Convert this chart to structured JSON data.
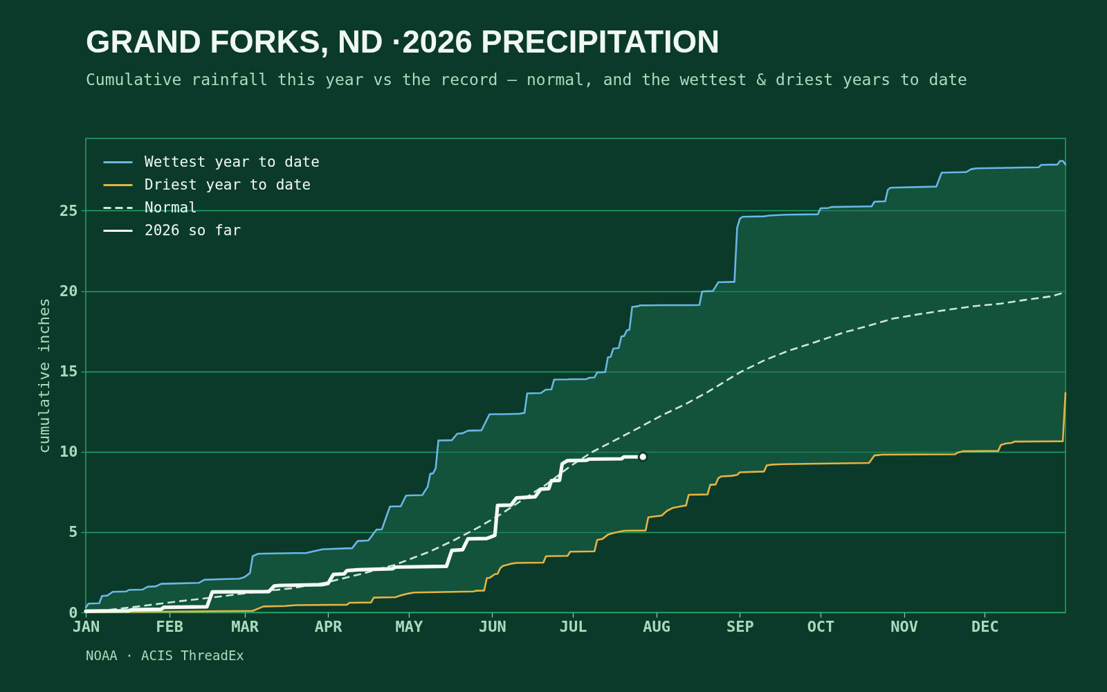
{
  "chart_data": {
    "type": "line",
    "title": "GRAND FORKS, ND ·2026 PRECIPITATION",
    "subtitle": "Cumulative rainfall this year vs the record — normal, and the wettest & driest years to date",
    "ylabel": "cumulative inches",
    "annotations": [
      "NOAA · ACIS ThreadEx"
    ],
    "xlim": [
      "--01-01",
      "--12-31"
    ],
    "xticks": [
      {
        "value": "--01-01",
        "label": "JAN"
      },
      {
        "value": "--02-01",
        "label": "FEB"
      },
      {
        "value": "--03-01",
        "label": "MAR"
      },
      {
        "value": "--04-01",
        "label": "APR"
      },
      {
        "value": "--05-01",
        "label": "MAY"
      },
      {
        "value": "--06-01",
        "label": "JUN"
      },
      {
        "value": "--07-01",
        "label": "JUL"
      },
      {
        "value": "--08-01",
        "label": "AUG"
      },
      {
        "value": "--09-01",
        "label": "SEP"
      },
      {
        "value": "--10-01",
        "label": "OCT"
      },
      {
        "value": "--11-01",
        "label": "NOV"
      },
      {
        "value": "--12-01",
        "label": "DEC"
      }
    ],
    "ylim": [
      0,
      29.5
    ],
    "yticks": [
      0,
      5,
      10,
      15,
      20,
      25
    ],
    "grid": "y",
    "legend": "top left",
    "series": [
      {
        "name": "Wettest year to date",
        "color": "#6bb6e6",
        "x": [
          "--01-01",
          "--01-02",
          "--01-06",
          "--01-07",
          "--01-09",
          "--01-11",
          "--01-16",
          "--01-17",
          "--01-22",
          "--01-24",
          "--01-27",
          "--01-29",
          "--02-10",
          "--02-12",
          "--02-14",
          "--02-20",
          "--02-27",
          "--03-01",
          "--03-03",
          "--03-04",
          "--03-06",
          "--03-08",
          "--03-16",
          "--03-20",
          "--03-24",
          "--03-30",
          "--04-08",
          "--04-09",
          "--04-10",
          "--04-12",
          "--04-16",
          "--04-17",
          "--04-18",
          "--04-19",
          "--04-21",
          "--04-24",
          "--04-26",
          "--04-28",
          "--04-30",
          "--05-01",
          "--05-03",
          "--05-06",
          "--05-08",
          "--05-09",
          "--05-10",
          "--05-11",
          "--05-12",
          "--05-17",
          "--05-19",
          "--05-21",
          "--05-23",
          "--05-25",
          "--05-26",
          "--05-28",
          "--05-29",
          "--05-30",
          "--05-31",
          "--06-02",
          "--06-03",
          "--06-04",
          "--06-05",
          "--06-08",
          "--06-10",
          "--06-11",
          "--06-13",
          "--06-14",
          "--06-19",
          "--06-20",
          "--06-21",
          "--06-23",
          "--06-24",
          "--06-29",
          "--06-30",
          "--07-06",
          "--07-07",
          "--07-09",
          "--07-10",
          "--07-12",
          "--07-13",
          "--07-14",
          "--07-15",
          "--07-16",
          "--07-18",
          "--07-19",
          "--07-20",
          "--07-21",
          "--07-22",
          "--07-23",
          "--07-25",
          "--07-26",
          "--07-28",
          "--07-29",
          "--08-03",
          "--08-05",
          "--08-07",
          "--08-11",
          "--08-12",
          "--08-13",
          "--08-17",
          "--08-18",
          "--08-20",
          "--08-21",
          "--08-22",
          "--08-23",
          "--08-24",
          "--08-25",
          "--08-29",
          "--08-30",
          "--08-31",
          "--09-01",
          "--09-02",
          "--09-10",
          "--09-11",
          "--09-12",
          "--09-13",
          "--09-17",
          "--09-18",
          "--09-30",
          "--10-01",
          "--10-04",
          "--10-05",
          "--10-19",
          "--10-20",
          "--10-21",
          "--10-24",
          "--10-25",
          "--10-26",
          "--10-27",
          "--11-13",
          "--11-15",
          "--11-20",
          "--11-21",
          "--11-23",
          "--11-24",
          "--11-26",
          "--11-28",
          "--12-06",
          "--12-07",
          "--12-09",
          "--12-11",
          "--12-12",
          "--12-21",
          "--12-22",
          "--12-28",
          "--12-29",
          "--12-30",
          "--12-31"
        ],
        "values": [
          0.3,
          0.55,
          0.57,
          1.02,
          1.05,
          1.28,
          1.3,
          1.4,
          1.42,
          1.6,
          1.62,
          1.78,
          1.83,
          1.84,
          2.03,
          2.07,
          2.1,
          2.2,
          2.45,
          3.5,
          3.65,
          3.66,
          3.68,
          3.69,
          3.7,
          3.93,
          3.99,
          3.99,
          4.0,
          4.44,
          4.48,
          4.7,
          4.93,
          5.15,
          5.17,
          6.59,
          6.6,
          6.6,
          7.27,
          7.28,
          7.29,
          7.3,
          7.81,
          8.63,
          8.65,
          8.96,
          10.7,
          10.72,
          11.12,
          11.15,
          11.31,
          11.32,
          11.32,
          11.33,
          11.66,
          12.0,
          12.33,
          12.34,
          12.34,
          12.34,
          12.34,
          12.35,
          12.36,
          12.36,
          12.42,
          13.63,
          13.65,
          13.76,
          13.87,
          13.88,
          14.49,
          14.5,
          14.51,
          14.52,
          14.6,
          14.62,
          14.94,
          14.95,
          14.96,
          15.88,
          15.9,
          16.42,
          16.45,
          17.17,
          17.2,
          17.55,
          17.6,
          19.01,
          19.05,
          19.11,
          19.11,
          19.11,
          19.12,
          19.12,
          19.12,
          19.12,
          19.12,
          19.12,
          19.13,
          19.97,
          19.99,
          19.99,
          20.0,
          20.28,
          20.55,
          20.55,
          20.57,
          20.57,
          23.93,
          24.5,
          24.62,
          24.65,
          24.68,
          24.7,
          24.71,
          24.74,
          24.75,
          24.78,
          25.15,
          25.17,
          25.23,
          25.27,
          25.27,
          25.56,
          25.58,
          25.58,
          26.3,
          26.43,
          26.5,
          27.37,
          27.39,
          27.39,
          27.4,
          27.4,
          27.59,
          27.64,
          27.66,
          27.66,
          27.67,
          27.67,
          27.68,
          27.7,
          27.85,
          27.87,
          28.1,
          28.1,
          27.88
        ],
        "upper": [
          0.3,
          0.55,
          0.57,
          1.02,
          1.05,
          1.28,
          1.3,
          1.4,
          1.42,
          1.6,
          1.62,
          1.78,
          1.83,
          1.84,
          2.03,
          2.07,
          2.1,
          2.2,
          2.45,
          3.5,
          3.65,
          3.66,
          3.68,
          3.69,
          3.7,
          3.93,
          3.99,
          3.99,
          4.0,
          4.44,
          4.48,
          4.7,
          4.93,
          5.15,
          5.17,
          6.59,
          6.6,
          6.6,
          7.27,
          7.28,
          7.29,
          7.3,
          7.81,
          8.63,
          8.65,
          8.96,
          10.7,
          10.72,
          11.12,
          11.15,
          11.31,
          11.32,
          11.32,
          11.33,
          11.66,
          12.0,
          12.33,
          12.34,
          12.34,
          12.34,
          12.34,
          12.35,
          12.36,
          12.36,
          12.42,
          13.63,
          13.65,
          13.76,
          13.87,
          13.88,
          14.49,
          14.5,
          14.51,
          14.52,
          14.6,
          14.62,
          14.94,
          14.95,
          14.96,
          15.88,
          15.9,
          16.42,
          16.45,
          17.17,
          17.2,
          17.55,
          17.6,
          19.01,
          19.05,
          19.11,
          19.11,
          19.11,
          19.12,
          19.12,
          19.12,
          19.12,
          19.12,
          19.12,
          19.13,
          19.97,
          19.99,
          19.99,
          20.0,
          20.28,
          20.55,
          20.55,
          20.57,
          20.57,
          23.93,
          24.5,
          24.62,
          24.65,
          24.68,
          24.7,
          24.71,
          24.74,
          24.75,
          24.78,
          25.15,
          25.17,
          25.23,
          25.27,
          25.27,
          25.56,
          25.58,
          25.58,
          26.3,
          26.43,
          26.5,
          27.37,
          27.39,
          27.39,
          27.4,
          27.4,
          27.59,
          27.64,
          27.66,
          27.66,
          27.67,
          27.67,
          27.68,
          27.7,
          27.85,
          27.87,
          28.1,
          28.1,
          27.88
        ],
        "lower": [
          0.02,
          0.02,
          0.03,
          0.03,
          0.03,
          0.03,
          0.04,
          0.04,
          0.04,
          0.04,
          0.05,
          0.05,
          0.06,
          0.06,
          0.07,
          0.08,
          0.09,
          0.09,
          0.1,
          0.1,
          0.24,
          0.37,
          0.4,
          0.45,
          0.46,
          0.47,
          0.48,
          0.6,
          0.6,
          0.61,
          0.62,
          0.62,
          0.92,
          0.92,
          0.93,
          0.94,
          0.95,
          1.06,
          1.14,
          1.18,
          1.24,
          1.25,
          1.25,
          1.26,
          1.26,
          1.26,
          1.26,
          1.28,
          1.28,
          1.29,
          1.29,
          1.3,
          1.35,
          1.36,
          1.36,
          2.13,
          2.15,
          2.38,
          2.4,
          2.76,
          2.9,
          3.03,
          3.08,
          3.08,
          3.09,
          3.09,
          3.1,
          3.1,
          3.5,
          3.51,
          3.51,
          3.52,
          3.78,
          3.79,
          3.8,
          3.8,
          4.51,
          4.58,
          4.71,
          4.84,
          4.89,
          4.94,
          5.01,
          5.05,
          5.08,
          5.08,
          5.09,
          5.09,
          5.09,
          5.1,
          5.1,
          5.92,
          6.03,
          6.33,
          6.5,
          6.63,
          6.65,
          7.32,
          7.33,
          7.33,
          7.34,
          7.94,
          7.95,
          7.96,
          8.35,
          8.46,
          8.5,
          8.53,
          8.56,
          8.72,
          8.73,
          8.77,
          9.15,
          9.18,
          9.2,
          9.23,
          9.23,
          9.26,
          9.26,
          9.27,
          9.27,
          9.3,
          9.54,
          9.77,
          9.82,
          9.82,
          9.82,
          9.82,
          9.83,
          9.84,
          9.84,
          9.95,
          10.03,
          10.03,
          10.03,
          10.04,
          10.05,
          10.42,
          10.52,
          10.55,
          10.63,
          10.64,
          10.64,
          10.65,
          10.65,
          10.65,
          13.66
        ]
      },
      {
        "name": "Driest year to date",
        "color": "#e5b442",
        "x": [
          "--01-01",
          "--02-10",
          "--03-04",
          "--03-08",
          "--03-16",
          "--03-20",
          "--04-08",
          "--04-09",
          "--04-17",
          "--04-18",
          "--04-26",
          "--04-28",
          "--05-01",
          "--05-03",
          "--05-25",
          "--05-26",
          "--05-29",
          "--05-30",
          "--05-31",
          "--06-02",
          "--06-03",
          "--06-04",
          "--06-05",
          "--06-08",
          "--06-10",
          "--06-20",
          "--06-21",
          "--06-29",
          "--06-30",
          "--07-09",
          "--07-10",
          "--07-12",
          "--07-14",
          "--07-16",
          "--07-20",
          "--07-28",
          "--07-29",
          "--08-03",
          "--08-05",
          "--08-07",
          "--08-11",
          "--08-12",
          "--08-13",
          "--08-20",
          "--08-21",
          "--08-23",
          "--08-24",
          "--08-25",
          "--08-29",
          "--08-31",
          "--09-01",
          "--09-10",
          "--09-11",
          "--09-13",
          "--09-17",
          "--10-19",
          "--10-21",
          "--10-24",
          "--11-20",
          "--11-21",
          "--11-23",
          "--12-06",
          "--12-07",
          "--12-09",
          "--12-11",
          "--12-12",
          "--12-30",
          "--12-31"
        ],
        "values": [
          0.02,
          0.06,
          0.1,
          0.37,
          0.4,
          0.45,
          0.48,
          0.6,
          0.62,
          0.92,
          0.95,
          1.06,
          1.18,
          1.24,
          1.3,
          1.35,
          1.36,
          2.13,
          2.15,
          2.38,
          2.4,
          2.76,
          2.9,
          3.03,
          3.08,
          3.1,
          3.5,
          3.52,
          3.78,
          3.8,
          4.51,
          4.58,
          4.84,
          4.94,
          5.08,
          5.1,
          5.92,
          6.03,
          6.33,
          6.5,
          6.63,
          6.65,
          7.32,
          7.34,
          7.94,
          7.96,
          8.35,
          8.46,
          8.5,
          8.56,
          8.72,
          8.77,
          9.15,
          9.2,
          9.23,
          9.3,
          9.77,
          9.82,
          9.84,
          9.95,
          10.03,
          10.05,
          10.42,
          10.52,
          10.55,
          10.63,
          10.65,
          13.66
        ]
      },
      {
        "name": "Normal",
        "color": "#cde8d6",
        "line_style": "dashed",
        "x": [
          "--01-01",
          "--01-17",
          "--02-03",
          "--02-20",
          "--03-05",
          "--03-18",
          "--03-31",
          "--04-13",
          "--04-26",
          "--05-01",
          "--05-09",
          "--05-18",
          "--05-27",
          "--06-04",
          "--06-13",
          "--06-21",
          "--06-30",
          "--07-08",
          "--07-17",
          "--07-26",
          "--08-03",
          "--08-12",
          "--08-20",
          "--09-01",
          "--09-10",
          "--09-19",
          "--09-29",
          "--10-09",
          "--10-19",
          "--10-28",
          "--11-07",
          "--11-17",
          "--11-27",
          "--12-07",
          "--12-16",
          "--12-26",
          "--12-31"
        ],
        "values": [
          0.0,
          0.3,
          0.66,
          0.99,
          1.27,
          1.49,
          1.85,
          2.38,
          2.97,
          3.29,
          3.8,
          4.51,
          5.3,
          6.09,
          7.09,
          7.95,
          9.1,
          9.97,
          10.75,
          11.54,
          12.26,
          12.98,
          13.71,
          14.94,
          15.68,
          16.28,
          16.82,
          17.39,
          17.85,
          18.29,
          18.57,
          18.83,
          19.06,
          19.22,
          19.45,
          19.68,
          19.93
        ]
      },
      {
        "name": "2026 so far",
        "color": "#f4faf6",
        "x": [
          "--01-01",
          "--01-17",
          "--01-18",
          "--01-29",
          "--01-30",
          "--02-15",
          "--02-17",
          "--03-10",
          "--03-12",
          "--03-14",
          "--03-30",
          "--04-01",
          "--04-03",
          "--04-07",
          "--04-08",
          "--04-12",
          "--04-25",
          "--04-26",
          "--05-15",
          "--05-17",
          "--05-21",
          "--05-23",
          "--05-30",
          "--06-02",
          "--06-03",
          "--06-08",
          "--06-10",
          "--06-17",
          "--06-19",
          "--06-22",
          "--06-23",
          "--06-26",
          "--06-27",
          "--06-29",
          "--07-06",
          "--07-07",
          "--07-19",
          "--07-20",
          "--07-27"
        ],
        "values": [
          0.08,
          0.1,
          0.17,
          0.2,
          0.32,
          0.35,
          1.28,
          1.3,
          1.64,
          1.68,
          1.73,
          1.8,
          2.36,
          2.4,
          2.6,
          2.65,
          2.72,
          2.82,
          2.87,
          3.86,
          3.9,
          4.58,
          4.6,
          4.8,
          6.66,
          6.68,
          7.12,
          7.2,
          7.67,
          7.7,
          8.2,
          8.22,
          9.25,
          9.45,
          9.47,
          9.54,
          9.56,
          9.68,
          9.68
        ]
      },
      {
        "type": "scatter",
        "color": "#f4faf6",
        "marker": "circle",
        "x": [
          "--07-27"
        ],
        "values": [
          9.68
        ]
      }
    ]
  }
}
